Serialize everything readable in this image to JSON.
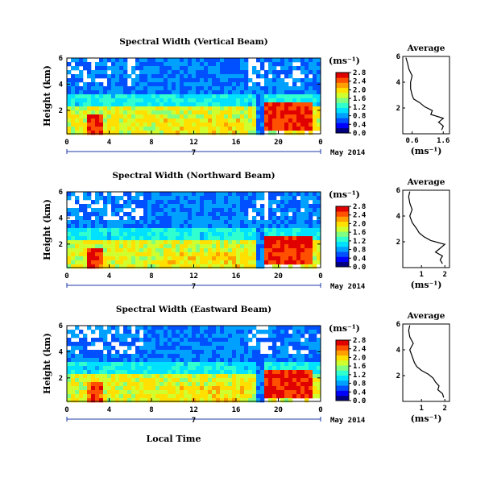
{
  "figure": {
    "date_label": "7",
    "month_label": "May 2014",
    "xlabel": "Local Time",
    "ylabel": "Height (km)",
    "unit": "(ms⁻¹)",
    "avg_title": "Average",
    "avg_xlabel": "(ms⁻¹)"
  },
  "colormap": [
    "#000080",
    "#0000ff",
    "#0050ff",
    "#00a0ff",
    "#00e0ff",
    "#30ffd0",
    "#80ff80",
    "#d0ff30",
    "#ffe000",
    "#ffa000",
    "#ff5000",
    "#e00000"
  ],
  "chart_data": [
    {
      "type": "heatmap",
      "title": "Spectral Width (Vertical Beam)",
      "x_ticks": [
        "0",
        "4",
        "8",
        "12",
        "16",
        "20",
        "0"
      ],
      "y_ticks": [
        "2",
        "4",
        "6"
      ],
      "xlim": [
        0,
        24
      ],
      "ylim": [
        0.2,
        6
      ],
      "colorbar_ticks": [
        "0.0",
        "0.4",
        "0.8",
        "1.2",
        "1.6",
        "2.0",
        "2.4",
        "2.8"
      ],
      "clim": [
        0,
        2.8
      ],
      "avg_profile": {
        "x_ticks": [
          "0.6",
          "1.6"
        ],
        "xlim": [
          0.3,
          1.8
        ],
        "height": [
          0.3,
          0.6,
          0.9,
          1.2,
          1.5,
          1.8,
          2.1,
          2.4,
          2.7,
          3.0,
          3.5,
          4.0,
          4.5,
          5.0,
          5.5,
          5.9
        ],
        "value": [
          1.55,
          1.6,
          1.45,
          1.6,
          1.2,
          1.25,
          1.0,
          0.85,
          0.65,
          0.6,
          0.55,
          0.55,
          0.6,
          0.5,
          0.45,
          0.4
        ]
      }
    },
    {
      "type": "heatmap",
      "title": "Spectral Width (Northward Beam)",
      "x_ticks": [
        "0",
        "4",
        "8",
        "12",
        "16",
        "20",
        "0"
      ],
      "y_ticks": [
        "2",
        "4",
        "6"
      ],
      "xlim": [
        0,
        24
      ],
      "ylim": [
        0.2,
        6
      ],
      "colorbar_ticks": [
        "0.0",
        "0.4",
        "0.8",
        "1.2",
        "1.6",
        "2.0",
        "2.4",
        "2.8"
      ],
      "clim": [
        0,
        2.8
      ],
      "avg_profile": {
        "x_ticks": [
          "1",
          "2"
        ],
        "xlim": [
          0.2,
          2.2
        ],
        "height": [
          0.3,
          0.6,
          0.9,
          1.2,
          1.5,
          1.8,
          2.1,
          2.4,
          2.7,
          3.0,
          3.5,
          4.0,
          4.5,
          5.0,
          5.5,
          5.9
        ],
        "value": [
          1.9,
          1.8,
          1.9,
          1.6,
          1.8,
          2.0,
          1.4,
          1.1,
          0.9,
          0.8,
          0.6,
          0.5,
          0.6,
          0.5,
          0.45,
          0.5
        ]
      }
    },
    {
      "type": "heatmap",
      "title": "Spectral Width (Eastward Beam)",
      "x_ticks": [
        "0",
        "4",
        "8",
        "12",
        "16",
        "20",
        "0"
      ],
      "y_ticks": [
        "2",
        "4",
        "6"
      ],
      "xlim": [
        0,
        24
      ],
      "ylim": [
        0.2,
        6
      ],
      "colorbar_ticks": [
        "0.0",
        "0.4",
        "0.8",
        "1.2",
        "1.6",
        "2.0",
        "2.4",
        "2.8"
      ],
      "clim": [
        0,
        2.8
      ],
      "avg_profile": {
        "x_ticks": [
          "1",
          "2"
        ],
        "xlim": [
          0.2,
          2.2
        ],
        "height": [
          0.3,
          0.6,
          0.9,
          1.2,
          1.5,
          1.8,
          2.1,
          2.4,
          2.7,
          3.0,
          3.5,
          4.0,
          4.5,
          5.0,
          5.5,
          5.9
        ],
        "value": [
          1.95,
          1.9,
          1.7,
          1.75,
          1.6,
          1.5,
          1.3,
          1.0,
          0.8,
          0.7,
          0.6,
          0.5,
          0.65,
          0.5,
          0.45,
          0.5
        ]
      }
    }
  ]
}
